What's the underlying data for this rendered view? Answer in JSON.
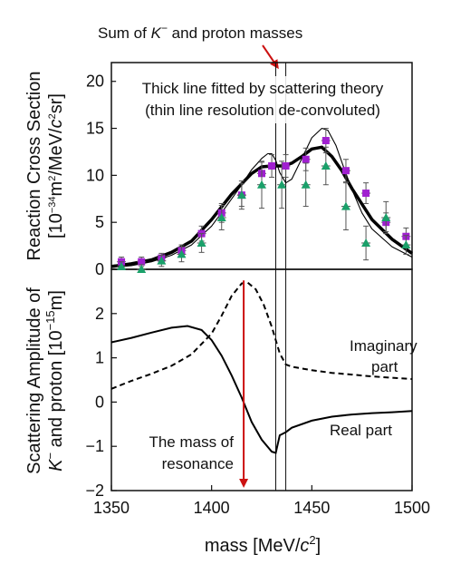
{
  "top_annotation": {
    "prefix": "Sum of ",
    "symbol": "K",
    "symbol_sup": "−",
    "suffix": " and proton masses"
  },
  "colors": {
    "axis": "#111111",
    "fit_line": "#000000",
    "arrow": "#cc1111",
    "square_marker": "#a020d0",
    "triangle_marker": "#1aa06a",
    "error_bar": "#555555"
  },
  "top_panel": {
    "ylabel_line1": "Reaction Cross Section",
    "ylabel_line2_parts": [
      "[10",
      "−34",
      "m",
      "2",
      "/MeV/",
      "c",
      "2",
      "sr]"
    ],
    "note_line1": "Thick line fitted by scattering theory",
    "note_line2": "(thin line resolution de-convoluted)"
  },
  "bottom_panel": {
    "ylabel_line1": "Scattering Amplitude of",
    "ylabel_line2_parts": [
      "K",
      "−",
      " and proton [10",
      "−15",
      "m]"
    ],
    "imag_label_1": "Imaginary",
    "imag_label_2": "part",
    "real_label": "Real part",
    "resonance_label_1": "The mass of",
    "resonance_label_2": "resonance"
  },
  "xaxis": {
    "label_parts": [
      "mass [MeV/",
      "c",
      "2",
      "]"
    ]
  },
  "chart_data": [
    {
      "type": "scatter",
      "panel": "top",
      "xlim": [
        1350,
        1500
      ],
      "ylim": [
        0,
        22
      ],
      "yticks": [
        0,
        5,
        10,
        15,
        20
      ],
      "grid": false,
      "vertical_lines_x": [
        1432,
        1437
      ],
      "series": [
        {
          "marker": "square",
          "color": "#a020d0",
          "points": [
            {
              "x": 1355,
              "y": 0.8,
              "err": 0.5
            },
            {
              "x": 1365,
              "y": 0.8,
              "err": 0.5
            },
            {
              "x": 1375,
              "y": 1.2,
              "err": 0.5
            },
            {
              "x": 1385,
              "y": 2.0,
              "err": 0.6
            },
            {
              "x": 1395,
              "y": 3.8,
              "err": 0.8
            },
            {
              "x": 1405,
              "y": 6.0,
              "err": 1.0
            },
            {
              "x": 1415,
              "y": 7.9,
              "err": 1.2
            },
            {
              "x": 1425,
              "y": 10.2,
              "err": 1.2
            },
            {
              "x": 1430,
              "y": 11.0,
              "err": 1.2
            },
            {
              "x": 1437,
              "y": 11.0,
              "err": 1.2
            },
            {
              "x": 1447,
              "y": 11.7,
              "err": 1.2
            },
            {
              "x": 1457,
              "y": 13.7,
              "err": 1.3
            },
            {
              "x": 1467,
              "y": 10.5,
              "err": 1.2
            },
            {
              "x": 1477,
              "y": 8.1,
              "err": 1.1
            },
            {
              "x": 1487,
              "y": 5.0,
              "err": 1.0
            },
            {
              "x": 1497,
              "y": 3.5,
              "err": 0.9
            }
          ]
        },
        {
          "marker": "triangle",
          "color": "#1aa06a",
          "points": [
            {
              "x": 1355,
              "y": 0.3,
              "err": 0.5
            },
            {
              "x": 1365,
              "y": 0.0,
              "err": 0.5
            },
            {
              "x": 1375,
              "y": 0.9,
              "err": 0.6
            },
            {
              "x": 1385,
              "y": 1.6,
              "err": 0.8
            },
            {
              "x": 1395,
              "y": 2.8,
              "err": 1.0
            },
            {
              "x": 1405,
              "y": 5.5,
              "err": 1.3
            },
            {
              "x": 1415,
              "y": 7.9,
              "err": 1.5
            },
            {
              "x": 1425,
              "y": 9.0,
              "err": 2.5
            },
            {
              "x": 1435,
              "y": 9.0,
              "err": 2.5
            },
            {
              "x": 1447,
              "y": 9.0,
              "err": 2.3
            },
            {
              "x": 1457,
              "y": 11.0,
              "err": 2.0
            },
            {
              "x": 1467,
              "y": 6.7,
              "err": 2.5
            },
            {
              "x": 1477,
              "y": 2.8,
              "err": 1.8
            },
            {
              "x": 1487,
              "y": 5.5,
              "err": 1.7
            },
            {
              "x": 1497,
              "y": 2.6,
              "err": 1.0
            }
          ]
        }
      ],
      "curves": [
        {
          "style": "thick",
          "x": [
            1350,
            1360,
            1370,
            1380,
            1390,
            1400,
            1410,
            1420,
            1425,
            1430,
            1435,
            1440,
            1445,
            1450,
            1455,
            1460,
            1465,
            1470,
            1480,
            1490,
            1500
          ],
          "y": [
            0.3,
            0.6,
            1.0,
            1.8,
            3.0,
            5.3,
            8.0,
            10.2,
            10.9,
            11.0,
            11.0,
            11.3,
            12.0,
            12.8,
            13.0,
            12.0,
            10.5,
            8.6,
            5.3,
            3.2,
            1.7
          ]
        },
        {
          "style": "thin",
          "x": [
            1350,
            1360,
            1370,
            1380,
            1390,
            1400,
            1410,
            1415,
            1420,
            1425,
            1428,
            1430,
            1432,
            1434,
            1437,
            1440,
            1445,
            1450,
            1455,
            1458,
            1462,
            1466,
            1470,
            1475,
            1480,
            1490,
            1500
          ],
          "y": [
            0.2,
            0.4,
            0.8,
            1.5,
            2.6,
            4.6,
            7.5,
            9.0,
            10.6,
            11.8,
            12.3,
            12.3,
            11.6,
            10.3,
            9.2,
            9.6,
            11.8,
            14.0,
            15.0,
            14.8,
            13.2,
            10.8,
            8.5,
            6.0,
            4.3,
            2.4,
            1.3
          ]
        }
      ]
    },
    {
      "type": "line",
      "panel": "bottom",
      "xlim": [
        1350,
        1500
      ],
      "ylim": [
        -2,
        3
      ],
      "xticks": [
        1350,
        1400,
        1450,
        1500
      ],
      "yticks": [
        -2,
        -1,
        0,
        1,
        2
      ],
      "grid": false,
      "vertical_lines_x": [
        1432,
        1437
      ],
      "resonance_arrow_x": 1416,
      "series": [
        {
          "name": "Real part",
          "style": "solid",
          "x": [
            1350,
            1360,
            1370,
            1380,
            1388,
            1395,
            1400,
            1405,
            1410,
            1415,
            1420,
            1425,
            1430,
            1432,
            1434,
            1437,
            1440,
            1450,
            1460,
            1470,
            1480,
            1490,
            1500
          ],
          "y": [
            1.35,
            1.45,
            1.57,
            1.68,
            1.72,
            1.63,
            1.4,
            1.05,
            0.6,
            0.1,
            -0.45,
            -0.85,
            -1.12,
            -1.15,
            -0.75,
            -0.68,
            -0.58,
            -0.42,
            -0.33,
            -0.28,
            -0.25,
            -0.23,
            -0.2
          ]
        },
        {
          "name": "Imaginary part",
          "style": "dashed",
          "x": [
            1350,
            1360,
            1370,
            1380,
            1390,
            1400,
            1405,
            1410,
            1415,
            1418,
            1422,
            1426,
            1430,
            1432,
            1434,
            1437,
            1440,
            1450,
            1460,
            1470,
            1480,
            1490,
            1500
          ],
          "y": [
            0.3,
            0.48,
            0.64,
            0.82,
            1.08,
            1.55,
            1.95,
            2.4,
            2.68,
            2.7,
            2.55,
            2.2,
            1.7,
            1.4,
            1.1,
            0.85,
            0.8,
            0.72,
            0.66,
            0.62,
            0.58,
            0.55,
            0.52
          ]
        }
      ]
    }
  ]
}
